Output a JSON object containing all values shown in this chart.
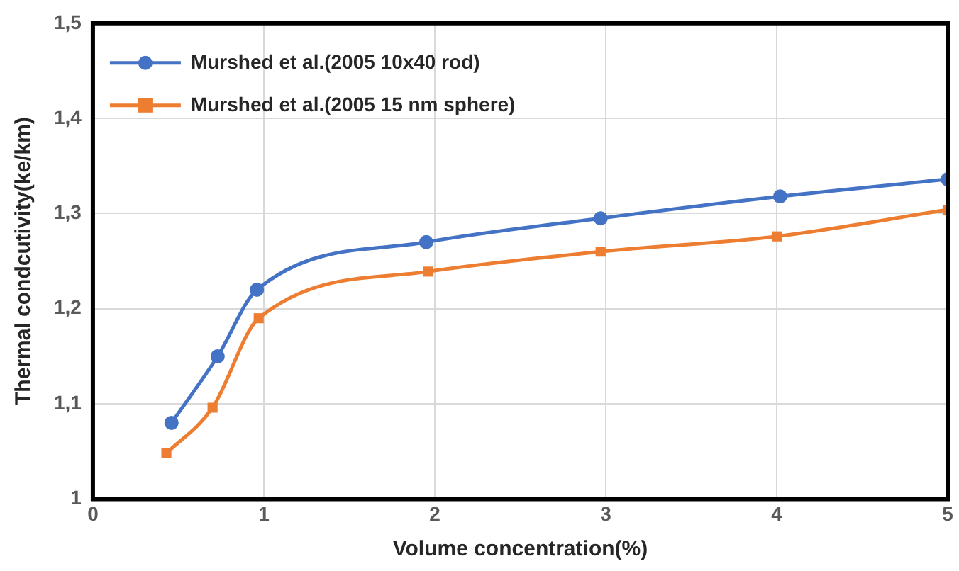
{
  "chart_data": {
    "type": "line",
    "xlabel": "Volume concentration(%)",
    "ylabel": "Thermal condcutivity(ke/km)",
    "xlim": [
      0,
      5
    ],
    "xticks": [
      0,
      1,
      2,
      3,
      4,
      5
    ],
    "ylim": [
      1,
      1.5
    ],
    "yticks": [
      1,
      {
        "value": 1.1,
        "label": "1,1"
      },
      {
        "value": 1.2,
        "label": "1,2"
      },
      {
        "value": 1.3,
        "label": "1,3"
      },
      {
        "value": 1.4,
        "label": "1,4"
      },
      {
        "value": 1.5,
        "label": "1,5"
      }
    ],
    "grid": true,
    "legend": "top left",
    "line_style": "solid",
    "series": [
      {
        "name": "Murshed et al.(2005 10x40 rod)",
        "color": "#4472c4",
        "marker": "circle",
        "x": [
          0.46,
          0.73,
          0.96,
          1.95,
          2.97,
          4.02,
          5
        ],
        "values": [
          1.08,
          1.15,
          1.22,
          1.27,
          1.295,
          1.318,
          1.336
        ]
      },
      {
        "name": "Murshed et al.(2005 15 nm sphere)",
        "color": "#ed7d31",
        "marker": "square",
        "x": [
          0.43,
          0.7,
          0.97,
          1.96,
          2.97,
          4,
          5
        ],
        "values": [
          1.048,
          1.096,
          1.19,
          1.239,
          1.26,
          1.276,
          1.304
        ]
      }
    ]
  }
}
